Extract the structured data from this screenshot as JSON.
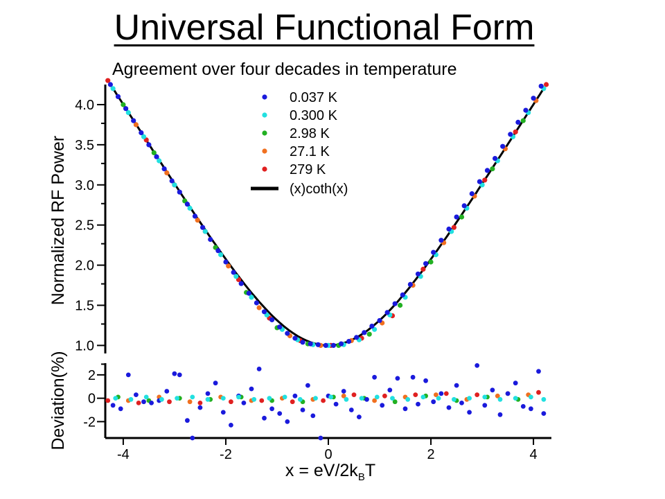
{
  "title": "Universal Functional Form",
  "subtitle": "Agreement over four decades in temperature",
  "chart_data": [
    {
      "type": "scatter",
      "panel": "main",
      "ylabel": "Normalized RF Power",
      "xlim": [
        -4.35,
        4.35
      ],
      "ylim": [
        0.9,
        4.25
      ],
      "yticks": [
        "1.0",
        "1.5",
        "2.0",
        "2.5",
        "3.0",
        "3.5",
        "4.0"
      ],
      "grid": false,
      "legend_position": "top-center",
      "series": [
        {
          "name": "0.037 K",
          "color": "#1a1adc",
          "x": [
            -4.25,
            -4.1,
            -3.95,
            -3.8,
            -3.65,
            -3.5,
            -3.35,
            -3.2,
            -3.05,
            -2.9,
            -2.75,
            -2.6,
            -2.45,
            -2.3,
            -2.15,
            -2.0,
            -1.85,
            -1.7,
            -1.55,
            -1.4,
            -1.25,
            -1.1,
            -0.95,
            -0.8,
            -0.65,
            -0.5,
            -0.35,
            -0.2,
            -0.05,
            0.1,
            0.25,
            0.4,
            0.55,
            0.7,
            0.85,
            1.0,
            1.15,
            1.3,
            1.45,
            1.6,
            1.75,
            1.9,
            2.05,
            2.2,
            2.35,
            2.5,
            2.65,
            2.8,
            2.95,
            3.1,
            3.25,
            3.4,
            3.55,
            3.7,
            3.85,
            4.0,
            4.15
          ],
          "y": [
            4.25,
            4.1,
            3.95,
            3.8,
            3.65,
            3.5,
            3.35,
            3.2,
            3.05,
            2.91,
            2.76,
            2.61,
            2.47,
            2.32,
            2.18,
            2.04,
            1.91,
            1.77,
            1.65,
            1.53,
            1.42,
            1.32,
            1.23,
            1.15,
            1.09,
            1.04,
            1.02,
            1.01,
            1.0,
            1.0,
            1.02,
            1.05,
            1.1,
            1.16,
            1.24,
            1.31,
            1.41,
            1.52,
            1.63,
            1.76,
            1.89,
            2.02,
            2.16,
            2.31,
            2.45,
            2.6,
            2.74,
            2.89,
            3.04,
            3.18,
            3.33,
            3.48,
            3.63,
            3.78,
            3.93,
            4.08,
            4.23
          ]
        },
        {
          "name": "0.300 K",
          "color": "#22e0e0",
          "x": [
            -4.2,
            -3.9,
            -3.6,
            -3.3,
            -3.0,
            -2.7,
            -2.4,
            -2.1,
            -1.8,
            -1.5,
            -1.2,
            -0.9,
            -0.6,
            -0.3,
            0.0,
            0.3,
            0.6,
            0.9,
            1.2,
            1.5,
            1.8,
            2.1,
            2.4,
            2.7,
            3.0,
            3.3,
            3.6,
            3.9,
            4.2
          ],
          "y": [
            4.2,
            3.9,
            3.6,
            3.3,
            3.0,
            2.71,
            2.42,
            2.13,
            1.86,
            1.6,
            1.38,
            1.2,
            1.07,
            1.01,
            1.0,
            1.01,
            1.07,
            1.2,
            1.38,
            1.6,
            1.86,
            2.13,
            2.42,
            2.71,
            3.0,
            3.3,
            3.6,
            3.9,
            4.2
          ]
        },
        {
          "name": "2.98 K",
          "color": "#22b022",
          "x": [
            -4.0,
            -3.4,
            -2.8,
            -2.2,
            -1.6,
            -1.0,
            -0.4,
            0.2,
            0.8,
            1.4,
            2.0,
            2.6,
            3.2,
            3.8
          ],
          "y": [
            4.0,
            3.4,
            2.8,
            2.22,
            1.66,
            1.22,
            1.02,
            1.0,
            1.14,
            1.5,
            2.04,
            2.6,
            3.2,
            3.8
          ]
        },
        {
          "name": "27.1 K",
          "color": "#f07020",
          "x": [
            -3.75,
            -3.15,
            -2.55,
            -1.95,
            -1.35,
            -0.75,
            -0.15,
            0.45,
            1.05,
            1.65,
            2.25,
            2.85,
            3.45,
            4.05
          ],
          "y": [
            3.75,
            3.15,
            2.56,
            1.99,
            1.47,
            1.12,
            1.0,
            1.06,
            1.28,
            1.75,
            2.28,
            2.86,
            3.45,
            4.05
          ]
        },
        {
          "name": "279  K",
          "color": "#e02020",
          "x": [
            -4.3,
            -3.55,
            -3.0,
            -2.4,
            -1.75,
            -1.15,
            -0.55,
            0.05,
            0.65,
            1.25,
            1.85,
            2.45,
            3.05,
            3.65,
            4.25
          ],
          "y": [
            4.3,
            3.56,
            3.0,
            2.42,
            1.82,
            1.34,
            1.06,
            1.0,
            1.09,
            1.37,
            1.95,
            2.47,
            3.06,
            3.66,
            4.25
          ]
        }
      ],
      "curve": {
        "name": "(x)coth(x)",
        "color": "#000000"
      }
    },
    {
      "type": "scatter",
      "panel": "deviation",
      "xlabel": "x = eV/2k",
      "xlabel_subscript": "B",
      "xlabel_suffix": "T",
      "ylabel": "Deviation(%)",
      "xlim": [
        -4.35,
        4.35
      ],
      "ylim": [
        -3.4,
        3.0
      ],
      "yticks": [
        "-2",
        "0",
        "2"
      ],
      "xticks": [
        "-4",
        "-2",
        "0",
        "2",
        "4"
      ],
      "series": [
        {
          "name": "0.037 K",
          "color": "#1a1adc",
          "x": [
            -4.2,
            -4.05,
            -3.9,
            -3.75,
            -3.6,
            -3.45,
            -3.3,
            -3.15,
            -3.0,
            -2.9,
            -2.75,
            -2.65,
            -2.5,
            -2.35,
            -2.2,
            -2.05,
            -1.9,
            -1.75,
            -1.65,
            -1.5,
            -1.35,
            -1.25,
            -1.1,
            -0.95,
            -0.8,
            -0.65,
            -0.5,
            -0.4,
            -0.3,
            -0.15,
            0.0,
            0.15,
            0.3,
            0.45,
            0.6,
            0.75,
            0.9,
            1.05,
            1.2,
            1.35,
            1.5,
            1.65,
            1.75,
            1.9,
            2.05,
            2.2,
            2.35,
            2.5,
            2.6,
            2.75,
            2.9,
            3.05,
            3.2,
            3.35,
            3.5,
            3.65,
            3.8,
            3.95,
            4.1,
            4.2
          ],
          "y": [
            -0.6,
            -0.9,
            2.0,
            0.3,
            -0.3,
            -0.4,
            -0.2,
            0.6,
            2.1,
            2.0,
            -1.9,
            -3.4,
            -0.8,
            0.4,
            1.3,
            -1.2,
            -2.3,
            0.2,
            -0.4,
            0.8,
            2.5,
            -1.7,
            -0.9,
            -1.3,
            -2.0,
            0.2,
            -1.0,
            1.1,
            -1.5,
            -3.5,
            0.2,
            -0.5,
            0.6,
            -1.0,
            -1.6,
            -0.1,
            1.8,
            -0.6,
            0.7,
            1.7,
            -0.9,
            1.8,
            -0.5,
            1.5,
            -0.3,
            0.4,
            -0.8,
            1.1,
            -0.4,
            -1.2,
            2.8,
            -0.6,
            0.7,
            -1.4,
            0.4,
            1.3,
            -0.7,
            -0.9,
            2.3,
            -1.3
          ]
        },
        {
          "name": "0.300 K",
          "color": "#22e0e0",
          "x": [
            -4.15,
            -3.85,
            -3.55,
            -3.25,
            -2.95,
            -2.65,
            -2.35,
            -2.05,
            -1.75,
            -1.45,
            -1.15,
            -0.85,
            -0.55,
            -0.25,
            0.05,
            0.35,
            0.65,
            0.95,
            1.25,
            1.55,
            1.85,
            2.15,
            2.45,
            2.75,
            3.05,
            3.35,
            3.65,
            3.95,
            4.2
          ],
          "y": [
            0.0,
            -0.1,
            0.1,
            -0.1,
            0.0,
            0.1,
            -0.1,
            0.0,
            0.1,
            -0.1,
            0.0,
            0.1,
            -0.1,
            0.0,
            0.1,
            -0.1,
            0.0,
            0.1,
            0.0,
            -0.1,
            0.1,
            0.0,
            -0.1,
            0.0,
            0.1,
            -0.1,
            0.0,
            0.1,
            -0.1
          ]
        },
        {
          "name": "2.98 K",
          "color": "#22b022",
          "x": [
            -4.1,
            -3.5,
            -2.9,
            -2.3,
            -1.7,
            -1.1,
            -0.5,
            0.1,
            0.7,
            1.3,
            1.9,
            2.5,
            3.1,
            3.7
          ],
          "y": [
            0.1,
            -0.2,
            0.0,
            -0.1,
            0.1,
            -0.2,
            -0.3,
            0.1,
            0.0,
            -0.3,
            0.2,
            -0.2,
            0.1,
            -0.1
          ]
        },
        {
          "name": "27.1 K",
          "color": "#f07020",
          "x": [
            -3.9,
            -3.3,
            -2.7,
            -2.1,
            -1.5,
            -0.9,
            -0.3,
            0.3,
            0.9,
            1.5,
            2.1,
            2.7,
            3.3,
            3.9
          ],
          "y": [
            -0.2,
            0.1,
            -0.3,
            0.1,
            -0.2,
            0.0,
            -0.1,
            0.2,
            -0.2,
            0.1,
            0.3,
            -0.1,
            0.2,
            0.3
          ]
        },
        {
          "name": "279  K",
          "color": "#e02020",
          "x": [
            -4.3,
            -3.7,
            -3.1,
            -2.5,
            -1.9,
            -1.3,
            -0.7,
            -0.1,
            0.5,
            1.1,
            1.7,
            2.3,
            2.9,
            3.5,
            4.1
          ],
          "y": [
            -0.2,
            -0.4,
            -0.3,
            -0.4,
            -0.3,
            -0.2,
            -0.3,
            -0.2,
            0.3,
            0.2,
            0.3,
            0.4,
            0.3,
            0.4,
            0.5
          ]
        }
      ]
    }
  ]
}
